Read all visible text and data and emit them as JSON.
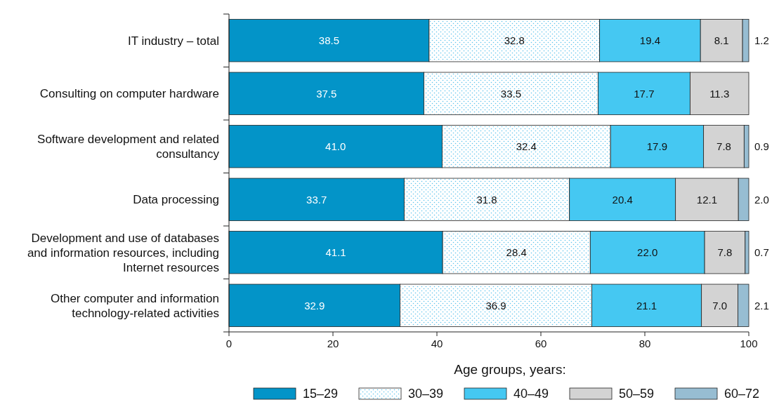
{
  "chart_data": {
    "type": "bar",
    "orientation": "horizontal",
    "stacked": true,
    "legend": "bottom",
    "legend_title": "Age groups, years:",
    "xlim": [
      0,
      100
    ],
    "xticks": [
      0,
      20,
      40,
      60,
      80,
      100
    ],
    "grid": false,
    "categories": [
      "IT industry – total",
      "Consulting on computer hardware",
      "Software development and related consultancy",
      "Data processing",
      "Development and use of databases and information resources, including Internet resources",
      "Other computer and information technology-related activities"
    ],
    "series": [
      {
        "name": "15–29",
        "color": "#0394c8",
        "values": [
          38.5,
          37.5,
          41.0,
          33.7,
          41.1,
          32.9
        ],
        "value_labels": [
          "38.5",
          "37.5",
          "41.0",
          "33.7",
          "41.1",
          "32.9"
        ]
      },
      {
        "name": "30–39",
        "color": "#ffffff",
        "values": [
          32.8,
          33.5,
          32.4,
          31.8,
          28.4,
          36.9
        ],
        "value_labels": [
          "32.8",
          "33.5",
          "32.4",
          "31.8",
          "28.4",
          "36.9"
        ]
      },
      {
        "name": "40–49",
        "color": "#45c8f2",
        "values": [
          19.4,
          17.7,
          17.9,
          20.4,
          22.0,
          21.1
        ],
        "value_labels": [
          "19.4",
          "17.7",
          "17.9",
          "20.4",
          "22.0",
          "21.1"
        ]
      },
      {
        "name": "50–59",
        "color": "#d3d3d3",
        "values": [
          8.1,
          11.3,
          7.8,
          12.1,
          7.8,
          7.0
        ],
        "value_labels": [
          "8.1",
          "11.3",
          "7.8",
          "12.1",
          "7.8",
          "7.0"
        ]
      },
      {
        "name": "60–72",
        "color": "#97bdd2",
        "values": [
          1.2,
          0,
          0.9,
          2.0,
          0.7,
          2.1
        ],
        "value_labels": [
          "1.2",
          null,
          "0.9",
          "2.0",
          "0.7",
          "2.1"
        ]
      }
    ]
  }
}
